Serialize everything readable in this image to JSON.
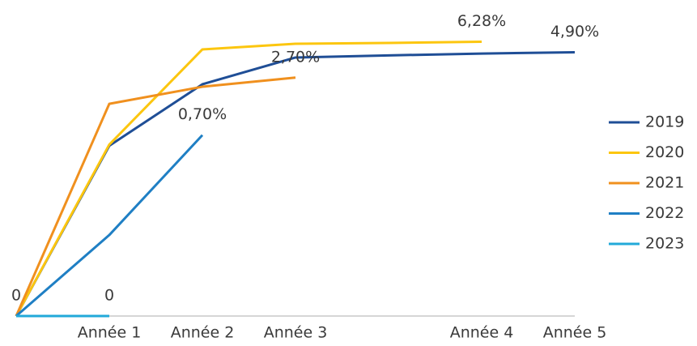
{
  "chart_data": {
    "type": "line",
    "categories": [
      null,
      "Année 1",
      "Année 2",
      "Année 3",
      null,
      "Année 4",
      "Année 5"
    ],
    "log_scale": true,
    "ylim": [
      0.01,
      10
    ],
    "legend": "right",
    "series": [
      {
        "name": "2019",
        "color": "#1f4e96",
        "values": [
          0,
          0.545,
          2.31,
          4.33,
          4.55,
          4.75,
          4.9
        ],
        "value_labels": [
          null,
          null,
          null,
          null,
          null,
          null,
          "4,90%"
        ]
      },
      {
        "name": "2020",
        "color": "#fcc60f",
        "values": [
          0,
          0.56,
          5.24,
          5.98,
          6.1,
          6.28,
          null
        ],
        "value_labels": [
          null,
          null,
          null,
          null,
          null,
          "6,28%",
          null
        ]
      },
      {
        "name": "2021",
        "color": "#f0901e",
        "values": [
          0,
          1.46,
          2.18,
          2.7,
          null,
          null,
          null
        ],
        "value_labels": [
          null,
          null,
          null,
          "2,70%",
          null,
          null,
          null
        ]
      },
      {
        "name": "2022",
        "color": "#1f7fc4",
        "values": [
          0,
          0.067,
          0.7,
          null,
          null,
          null,
          null
        ],
        "value_labels": [
          null,
          null,
          "0,70%",
          null,
          null,
          null,
          null
        ]
      },
      {
        "name": "2023",
        "color": "#22a9d9",
        "values": [
          0,
          0,
          null,
          null,
          null,
          null,
          null
        ],
        "value_labels": [
          "0",
          "0",
          null,
          null,
          null,
          null,
          null
        ]
      }
    ]
  }
}
